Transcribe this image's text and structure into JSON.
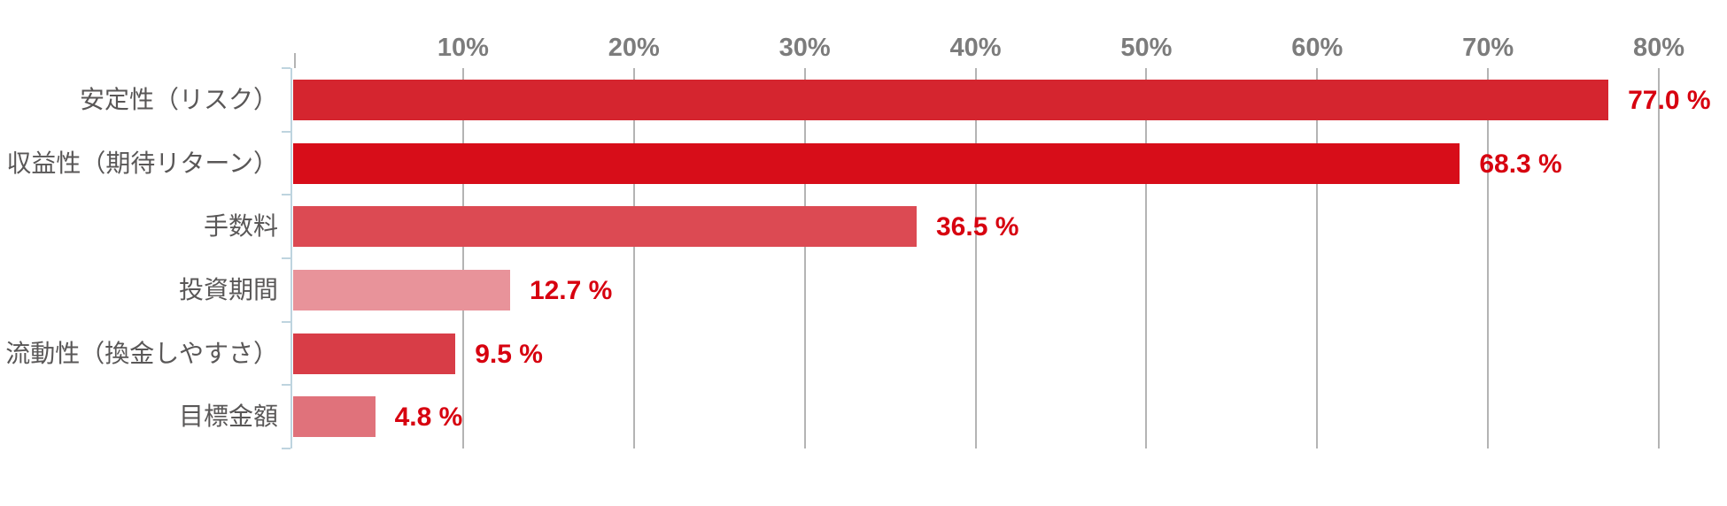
{
  "chart_data": {
    "type": "bar",
    "orientation": "horizontal",
    "title": "",
    "xlabel": "",
    "ylabel": "",
    "categories": [
      "安定性（リスク）",
      "収益性（期待リターン）",
      "手数料",
      "投資期間",
      "流動性（換金しやすさ）",
      "目標金額"
    ],
    "values": [
      77.0,
      68.3,
      36.5,
      12.7,
      9.5,
      4.8
    ],
    "value_labels": [
      "77.0 %",
      "68.3 %",
      "36.5 %",
      "12.7 %",
      "9.5 %",
      "4.8 %"
    ],
    "bar_colors": [
      "#d5252f",
      "#d70d19",
      "#dc4a53",
      "#e8939a",
      "#d83d47",
      "#e0727b"
    ],
    "x_axis": {
      "position": "top",
      "min": 0,
      "max": 80,
      "tick_values": [
        10,
        20,
        30,
        40,
        50,
        60,
        70,
        80
      ],
      "tick_labels": [
        "10%",
        "20%",
        "30%",
        "40%",
        "50%",
        "60%",
        "70%",
        "80%"
      ]
    },
    "grid": true,
    "legend": false,
    "colors": {
      "value_label": "#d7000f",
      "category_label": "#595757",
      "tick_label": "#7c7c7c",
      "gridline": "#b4b4b4",
      "axis_line": "#bed4df",
      "background": "#ffffff"
    }
  }
}
